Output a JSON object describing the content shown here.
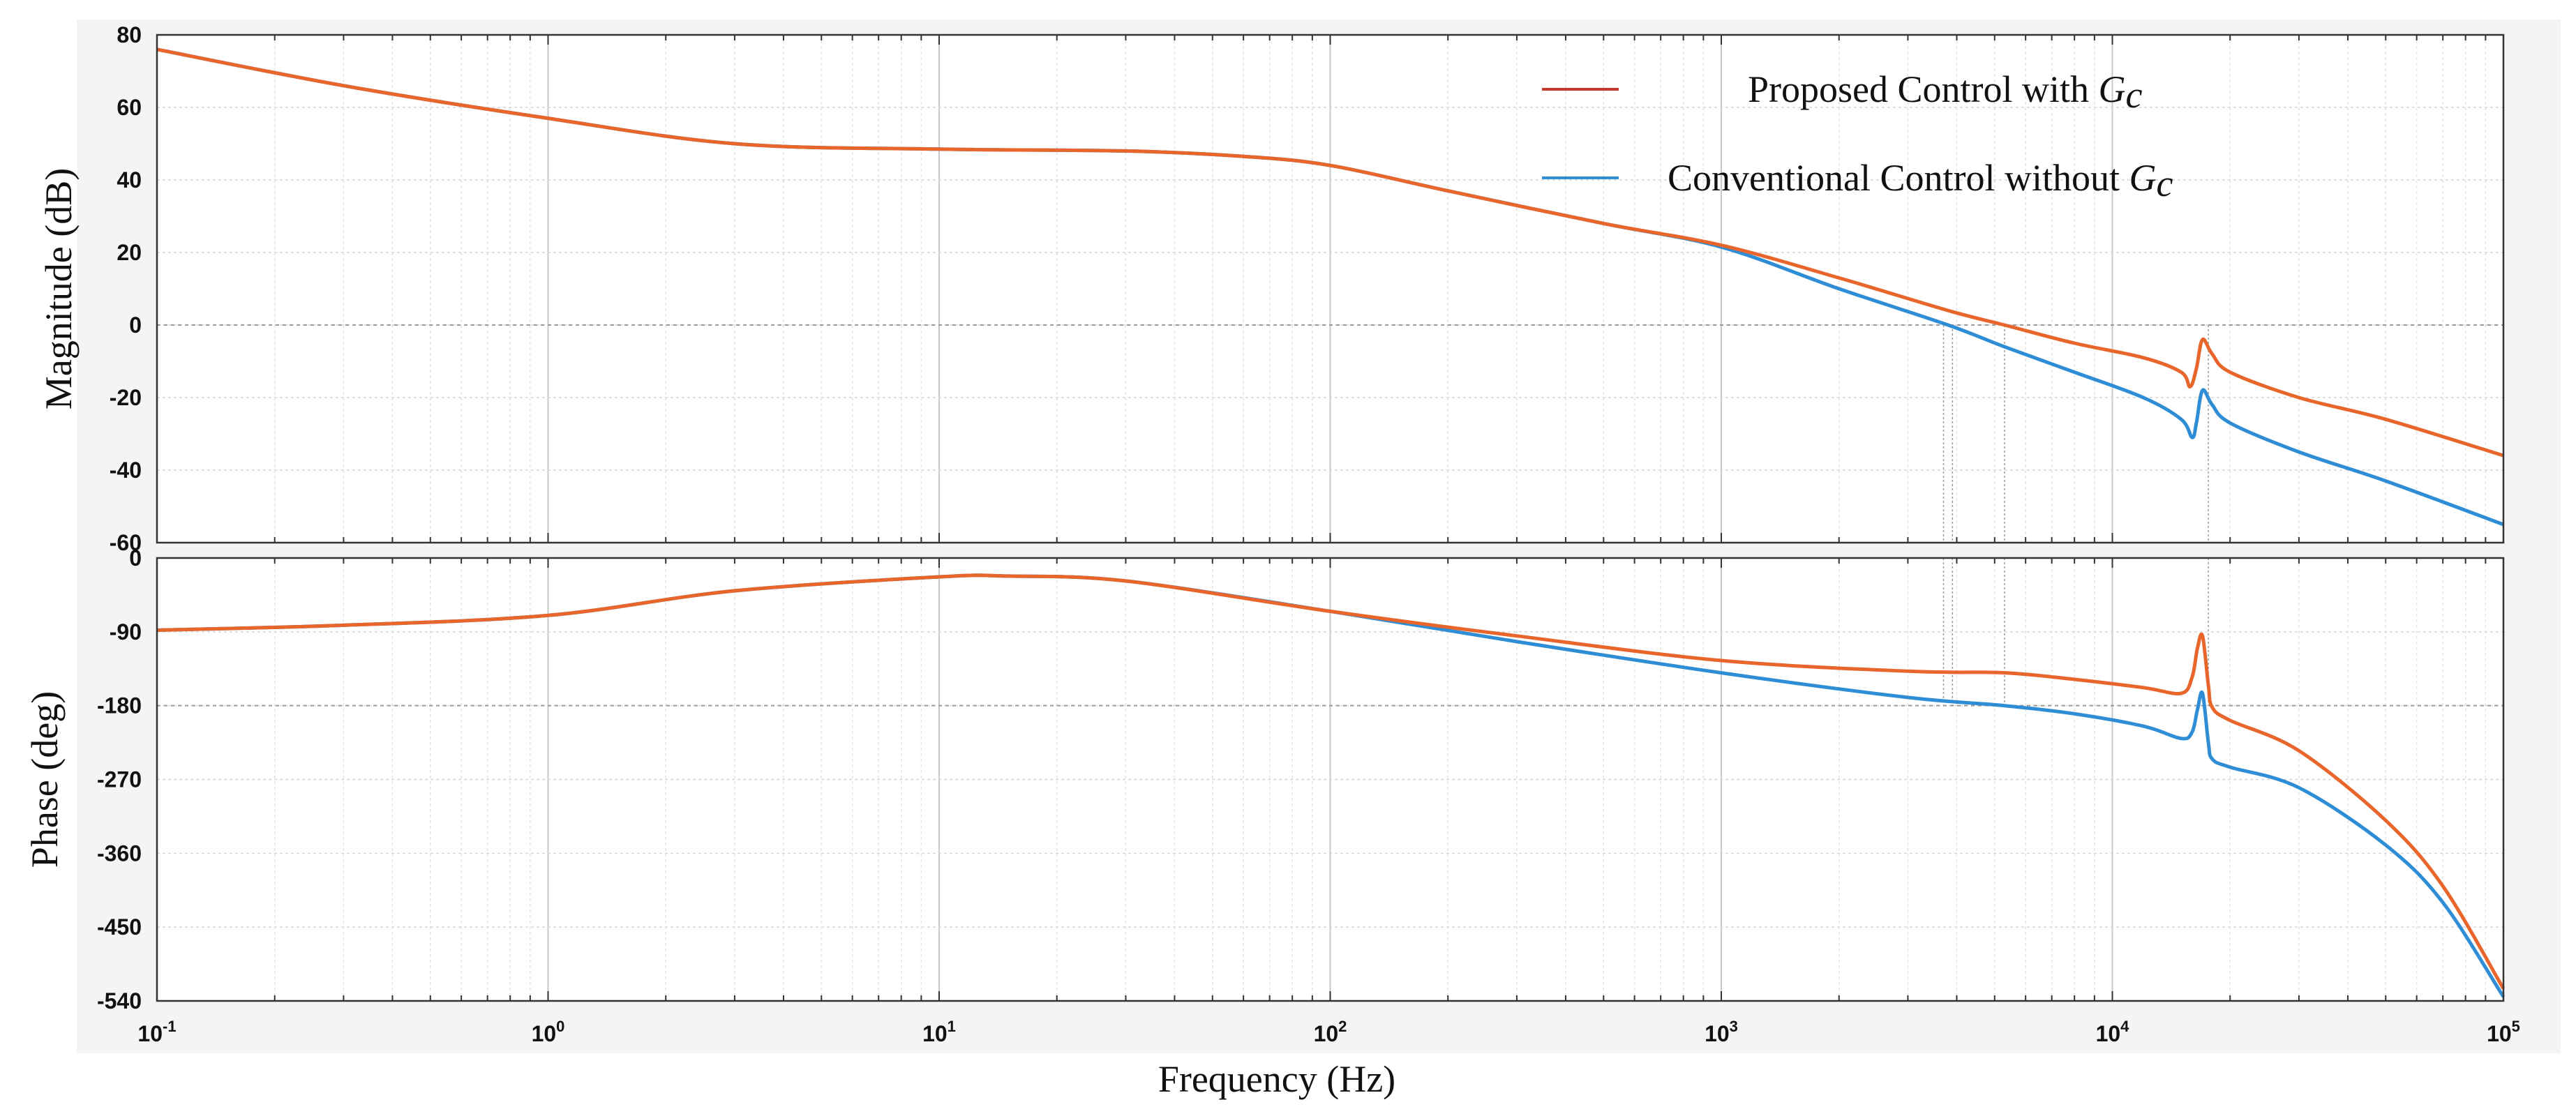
{
  "chart_data": [
    {
      "type": "line",
      "panel": "magnitude",
      "ylabel": "Magnitude (dB)",
      "xscale": "log",
      "xlim_exponent": [
        -1,
        5
      ],
      "ylim": [
        -60,
        80
      ],
      "yticks": [
        "80",
        "60",
        "40",
        "20",
        "0",
        "-20",
        "-40",
        "-60"
      ],
      "grid": true,
      "legend": "top-right",
      "series": [
        {
          "name": "Proposed Control with G_c",
          "color": "#e8662b",
          "x": [
            0.1,
            0.3,
            1,
            3,
            10,
            30,
            60,
            100,
            200,
            500,
            1000,
            2000,
            3800,
            5300,
            8000,
            12000,
            15000,
            15800,
            16400,
            17000,
            18000,
            20000,
            30000,
            50000,
            100000
          ],
          "y": [
            76,
            66,
            57,
            50,
            48.5,
            48,
            46.5,
            44,
            37,
            28,
            22,
            13,
            4,
            0,
            -5,
            -9,
            -13,
            -17,
            -12,
            -4,
            -8,
            -13,
            -20,
            -26,
            -36
          ]
        },
        {
          "name": "Conventional Control without G_c",
          "color": "#2f8dd6",
          "x": [
            0.1,
            0.3,
            1,
            3,
            10,
            30,
            60,
            100,
            200,
            500,
            1000,
            2000,
            3800,
            5300,
            8000,
            12000,
            15000,
            16000,
            16400,
            17000,
            18000,
            20000,
            30000,
            50000,
            100000
          ],
          "y": [
            76,
            66,
            57,
            50,
            48.5,
            48,
            46.5,
            44,
            37,
            28,
            21.5,
            10,
            0,
            -6,
            -13,
            -20,
            -26,
            -31,
            -27,
            -18,
            -22,
            -27,
            -35,
            -43,
            -55
          ]
        }
      ],
      "legend_entries": [
        {
          "prefix": "Proposed Control with ",
          "symbol": "G",
          "subscript": "c",
          "color": "#c0392b"
        },
        {
          "prefix": "Conventional Control without ",
          "symbol": "G",
          "subscript": "c",
          "color": "#2f8dd6"
        }
      ]
    },
    {
      "type": "line",
      "panel": "phase",
      "ylabel": "Phase (deg)",
      "xlabel": "Frequency (Hz)",
      "xscale": "log",
      "xlim_exponent": [
        -1,
        5
      ],
      "xticks": [
        {
          "base": "10",
          "exp": "-1"
        },
        {
          "base": "10",
          "exp": "0"
        },
        {
          "base": "10",
          "exp": "1"
        },
        {
          "base": "10",
          "exp": "2"
        },
        {
          "base": "10",
          "exp": "3"
        },
        {
          "base": "10",
          "exp": "4"
        },
        {
          "base": "10",
          "exp": "5"
        }
      ],
      "ylim": [
        -540,
        0
      ],
      "yticks": [
        "0",
        "-90",
        "-180",
        "-270",
        "-360",
        "-450",
        "-540"
      ],
      "grid": true,
      "series": [
        {
          "name": "Proposed Control with G_c",
          "color": "#e8662b",
          "x": [
            0.1,
            0.3,
            1,
            3,
            10,
            15,
            30,
            100,
            300,
            1000,
            3000,
            5300,
            8000,
            12000,
            15000,
            16000,
            16500,
            17000,
            17600,
            18000,
            20000,
            30000,
            50000,
            70000,
            100000
          ],
          "y": [
            -88,
            -82,
            -70,
            -40,
            -23,
            -22,
            -28,
            -65,
            -95,
            -125,
            -138,
            -140,
            -148,
            -158,
            -165,
            -145,
            -110,
            -95,
            -155,
            -182,
            -198,
            -235,
            -320,
            -400,
            -525
          ]
        },
        {
          "name": "Conventional Control without G_c",
          "color": "#2f8dd6",
          "x": [
            0.1,
            0.3,
            1,
            3,
            10,
            15,
            30,
            100,
            300,
            1000,
            3000,
            5300,
            8000,
            12000,
            15000,
            16000,
            16500,
            17000,
            17600,
            18000,
            20000,
            30000,
            50000,
            70000,
            100000
          ],
          "y": [
            -88,
            -82,
            -70,
            -40,
            -23,
            -22,
            -28,
            -65,
            -102,
            -140,
            -170,
            -180,
            -190,
            -205,
            -220,
            -212,
            -185,
            -165,
            -225,
            -245,
            -255,
            -280,
            -350,
            -420,
            -535
          ]
        }
      ]
    }
  ]
}
